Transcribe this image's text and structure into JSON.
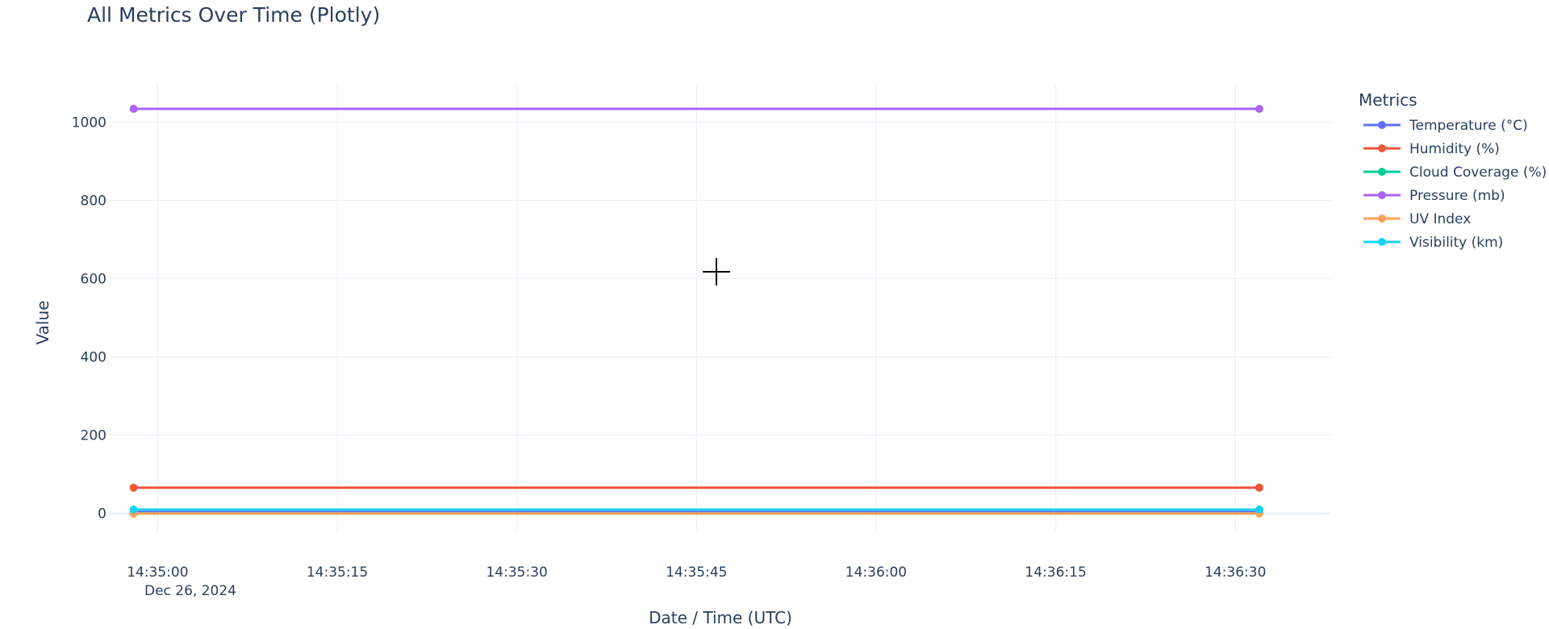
{
  "chart_data": {
    "type": "line",
    "title": "All Metrics Over Time (Plotly)",
    "xlabel": "Date / Time (UTC)",
    "ylabel": "Value",
    "x": [
      "2024-12-26 14:34:58",
      "2024-12-26 14:36:32"
    ],
    "xlim": [
      "2024-12-26 14:34:56",
      "2024-12-26 14:36:38"
    ],
    "ylim": [
      -50,
      1100
    ],
    "x_ticks": [
      "14:35:00",
      "14:35:15",
      "14:35:30",
      "14:35:45",
      "14:36:00",
      "14:36:15",
      "14:36:30"
    ],
    "x_tick_date": "Dec 26, 2024",
    "y_ticks": [
      0,
      200,
      400,
      600,
      800,
      1000
    ],
    "grid": true,
    "legend": {
      "title": "Metrics",
      "position": "right"
    },
    "series": [
      {
        "name": "Temperature (°C)",
        "color": "#636efa",
        "values": [
          4,
          4
        ]
      },
      {
        "name": "Humidity (%)",
        "color": "#ef553b",
        "values": [
          66,
          66
        ]
      },
      {
        "name": "Cloud Coverage (%)",
        "color": "#00cc96",
        "values": [
          0,
          0
        ]
      },
      {
        "name": "Pressure (mb)",
        "color": "#ab63fa",
        "values": [
          1034,
          1034
        ]
      },
      {
        "name": "UV Index",
        "color": "#ffa15a",
        "values": [
          0,
          0
        ]
      },
      {
        "name": "Visibility (km)",
        "color": "#19d3f3",
        "values": [
          10,
          10
        ]
      }
    ]
  }
}
